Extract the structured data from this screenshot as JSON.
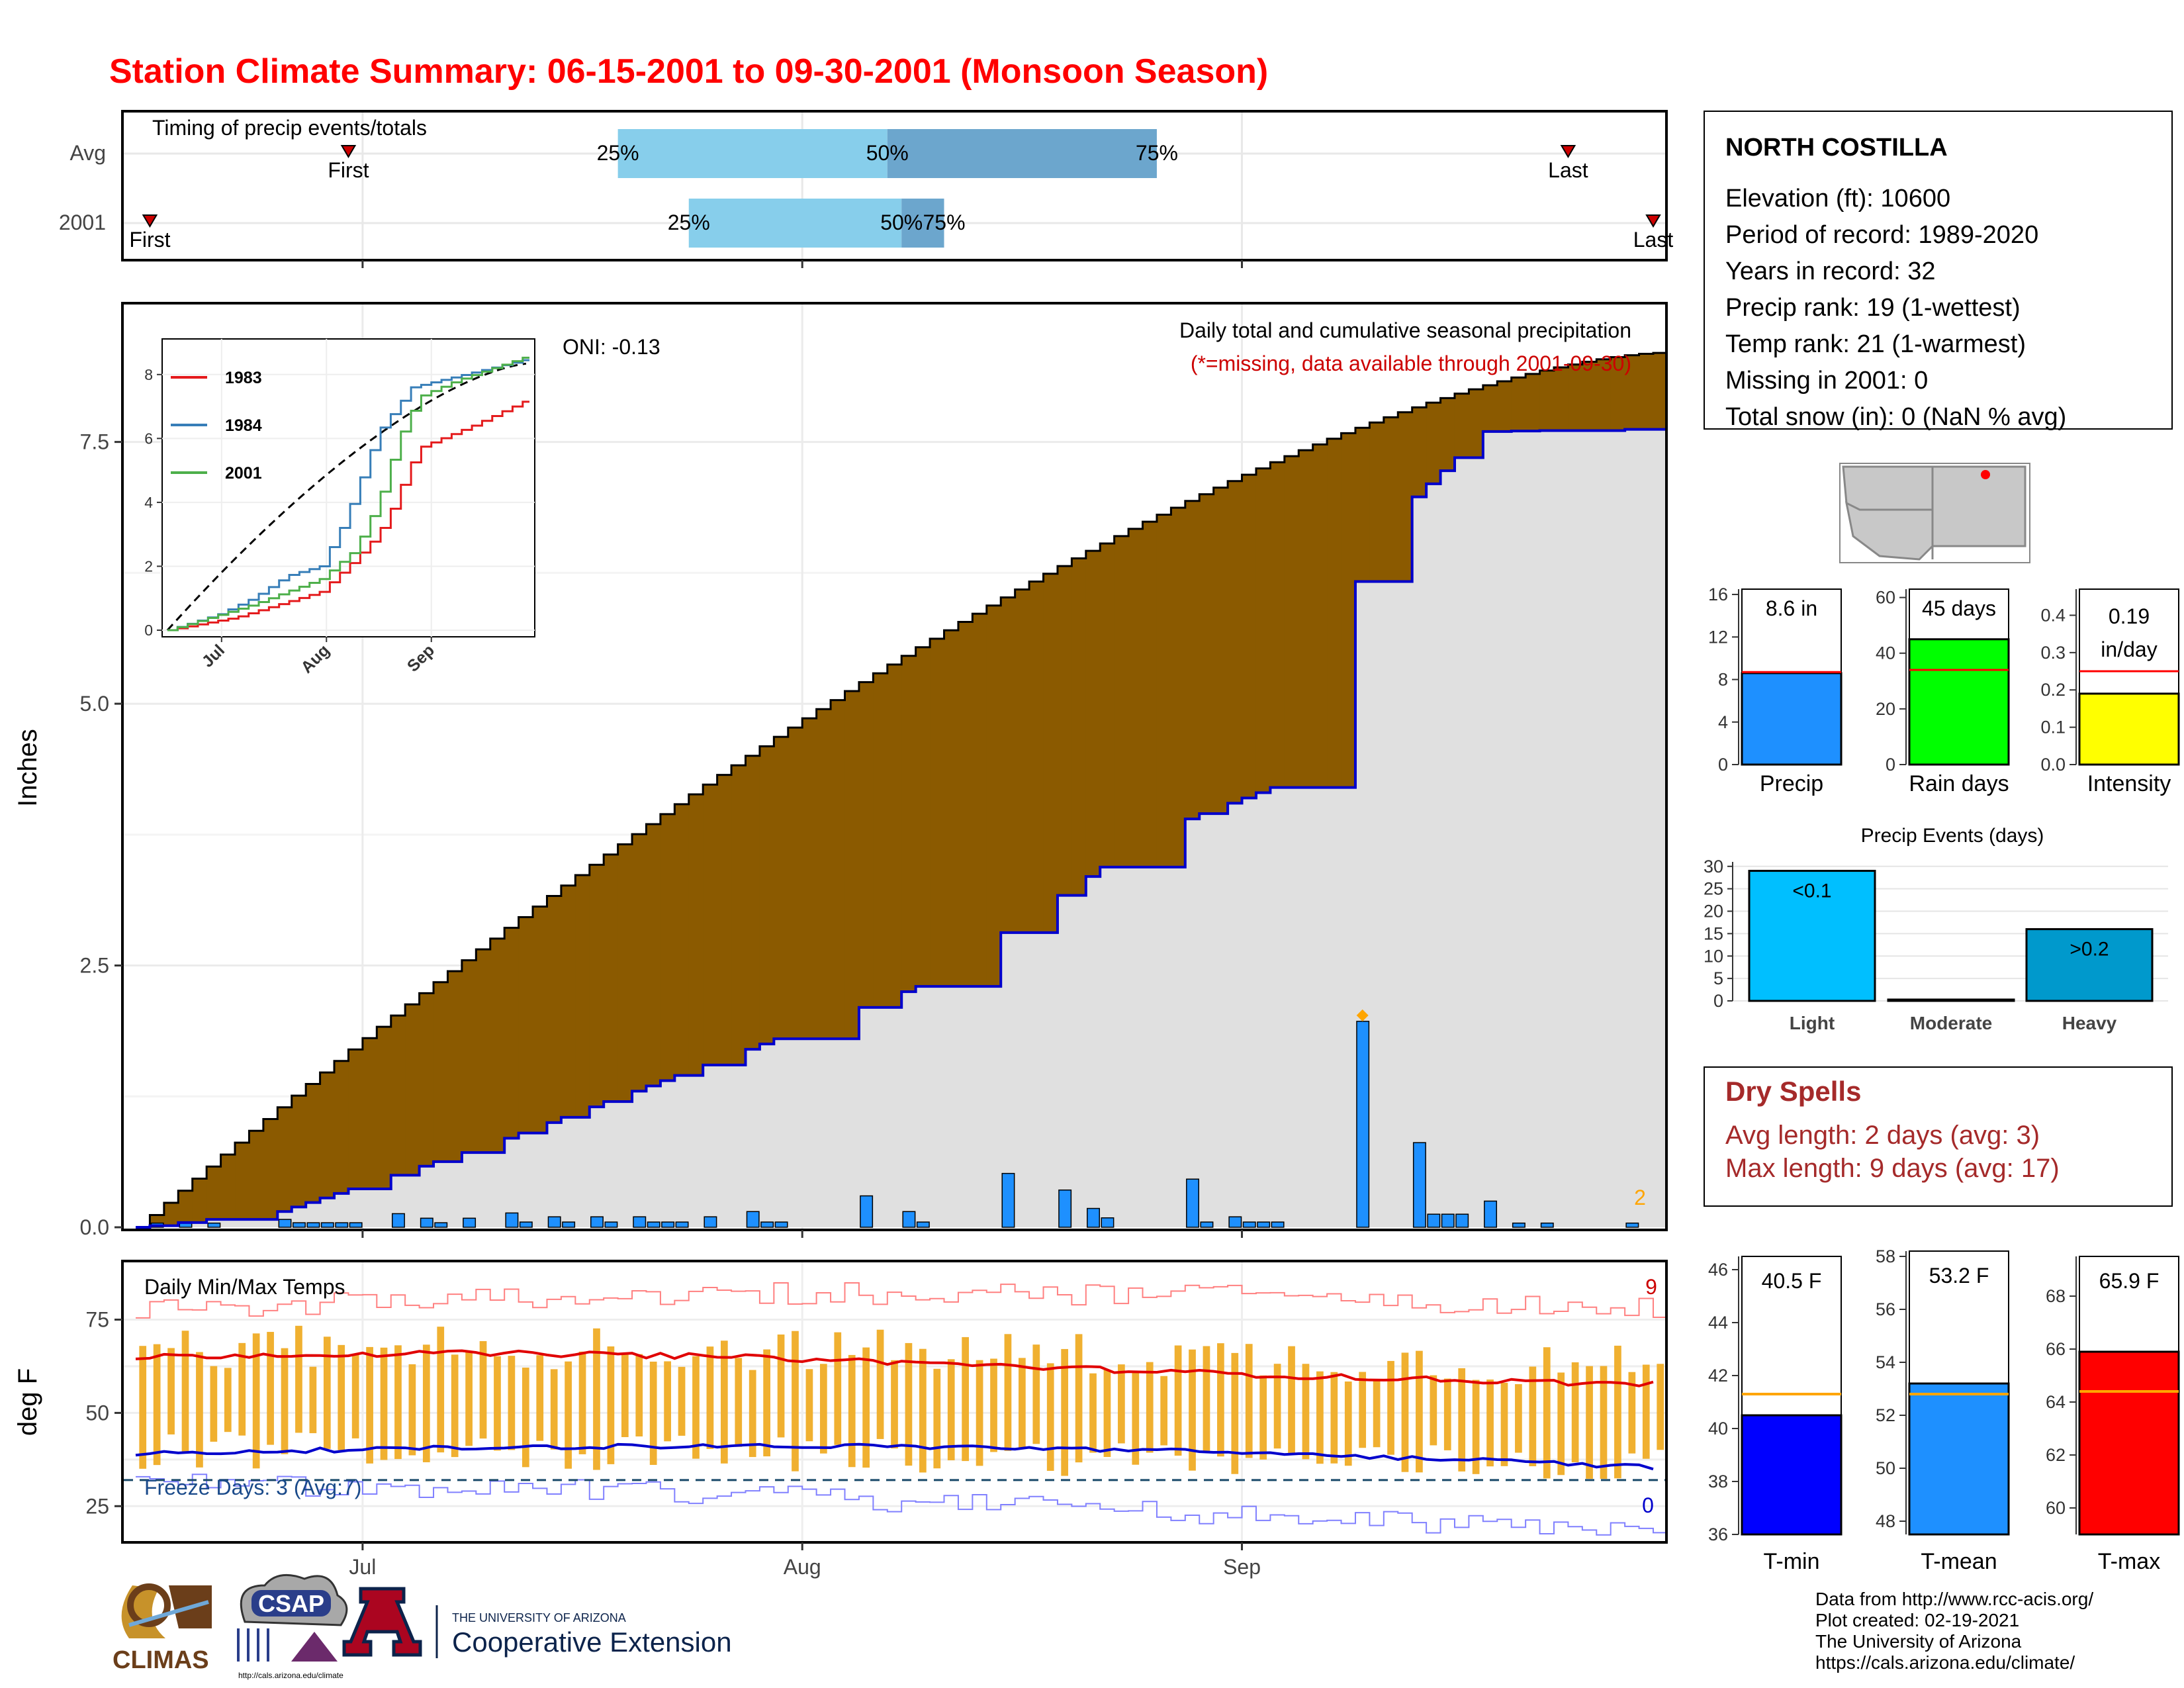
{
  "title": "Station Climate Summary: 06-15-2001 to 09-30-2001 (Monsoon Season)",
  "timing": {
    "label": "Timing of precip events/totals",
    "rows": [
      "Avg",
      "2001"
    ],
    "first_label": "First",
    "last_label": "Last",
    "avg": {
      "first": "2001-06-30",
      "p25": "2001-07-19",
      "p50": "2001-08-07",
      "p75": "2001-08-26",
      "last": "2001-09-24"
    },
    "y2001": {
      "first": "2001-06-16",
      "p25": "2001-07-24",
      "p50": "2001-08-08",
      "p75": "2001-08-11",
      "last": "2001-09-30"
    },
    "pct_labels": [
      "25%",
      "50%",
      "75%"
    ],
    "colors": {
      "q1": "#87CEEB",
      "q2": "#6CA6CD",
      "marker": "#CC0000"
    }
  },
  "main_chart": {
    "ylabel": "Inches",
    "yticks": [
      0.0,
      2.5,
      5.0,
      7.5
    ],
    "ylim": [
      0,
      8.8
    ],
    "oni_label": "ONI: -0.13",
    "subtitle": "Daily total and cumulative seasonal precipitation",
    "note": "(*=missing, data available through 2001-09-30)",
    "corner_value": "2",
    "colors": {
      "above": "#008000",
      "below": "#8B5A00",
      "avg_fill": "#E0E0E0",
      "bars": "#1E90FF",
      "cum_line": "#0000CC",
      "marker": "#FFA500",
      "note": "#CC0000"
    }
  },
  "inset": {
    "series": [
      "1983",
      "1984",
      "2001"
    ],
    "colors": [
      "#E41A1C",
      "#377EB8",
      "#4DAF4A"
    ],
    "yticks": [
      0,
      2,
      4,
      6,
      8
    ],
    "xticks": [
      "Jul",
      "Aug",
      "Sep"
    ]
  },
  "temp_chart": {
    "label": "Daily Min/Max Temps",
    "ylabel": "deg F",
    "yticks": [
      25,
      50,
      75
    ],
    "ylim": [
      16,
      90
    ],
    "freeze_label": "Freeze Days: 3 (Avg:7)",
    "max_count": "9",
    "min_count": "0",
    "x_labels": [
      "Jul",
      "Aug",
      "Sep"
    ],
    "colors": {
      "bars": "#F0B030",
      "avg_max": "#E00000",
      "avg_min": "#0000CC",
      "rec_max": "#FF8080",
      "rec_min": "#8080FF",
      "freeze": "#1A4A6A",
      "record_dot": "#FF0000"
    }
  },
  "station": {
    "name": "NORTH COSTILLA",
    "lines": [
      "Elevation (ft): 10600",
      "Period of record: 1989-2020",
      "Years in record: 32",
      "Precip rank: 19 (1-wettest)",
      "Temp rank: 21 (1-warmest)",
      "Missing in 2001: 0",
      "Total snow (in): 0 (NaN % avg)"
    ]
  },
  "summary_bars": [
    {
      "name": "Precip",
      "label": "8.6 in",
      "value": 8.6,
      "avg": 8.7,
      "yticks": [
        0,
        4,
        8,
        12,
        16
      ],
      "ymax": 16.5,
      "color": "#1E90FF"
    },
    {
      "name": "Rain days",
      "label": "45 days",
      "value": 45,
      "avg": 34,
      "yticks": [
        0,
        20,
        40,
        60
      ],
      "ymax": 63,
      "color": "#00FF00"
    },
    {
      "name": "Intensity",
      "label": "0.19",
      "label2": "in/day",
      "value": 0.19,
      "avg": 0.25,
      "yticks": [
        "0.0",
        "0.1",
        "0.2",
        "0.3",
        "0.4"
      ],
      "ymax": 0.47,
      "color": "#FFFF00"
    }
  ],
  "precip_events": {
    "title": "Precip Events (days)",
    "categories": [
      "Light",
      "Moderate",
      "Heavy"
    ],
    "values": [
      29,
      0,
      16
    ],
    "labels": [
      "<0.1",
      "",
      ">0.2"
    ],
    "colors": [
      "#00BFFF",
      "#00BFFF",
      "#0099CC"
    ],
    "yticks": [
      0,
      5,
      10,
      15,
      20,
      25,
      30
    ]
  },
  "dry_spells": {
    "title": "Dry Spells",
    "lines": [
      "Avg length: 2 days (avg: 3)",
      "Max length: 9 days (avg: 17)"
    ],
    "color": "#A52A2A"
  },
  "temp_bars": [
    {
      "name": "T-min",
      "label": "40.5 F",
      "value": 40.5,
      "avg": 41.3,
      "ymin": 36,
      "ymax": 46.5,
      "yticks": [
        36,
        38,
        40,
        42,
        44,
        46
      ],
      "color": "#0000FF"
    },
    {
      "name": "T-mean",
      "label": "53.2 F",
      "value": 53.2,
      "avg": 52.8,
      "ymin": 47.5,
      "ymax": 58.2,
      "yticks": [
        48,
        50,
        52,
        54,
        56,
        58
      ],
      "color": "#1E90FF"
    },
    {
      "name": "T-max",
      "label": "65.9 F",
      "value": 65.9,
      "avg": 64.4,
      "ymin": 59,
      "ymax": 69.5,
      "yticks": [
        60,
        62,
        64,
        66,
        68
      ],
      "color": "#FF0000"
    }
  ],
  "footer": {
    "lines": [
      "Data from http://www.rcc-acis.org/",
      "Plot created: 02-19-2021",
      "The University of Arizona",
      "https://cals.arizona.edu/climate/"
    ]
  },
  "logos": {
    "climas": "CLIMAS",
    "csap": "CSAP",
    "csap_url": "http://cals.arizona.edu/climate",
    "ua_small": "THE UNIVERSITY OF ARIZONA",
    "ua_big": "Cooperative Extension",
    "ua_letter": "A"
  }
}
